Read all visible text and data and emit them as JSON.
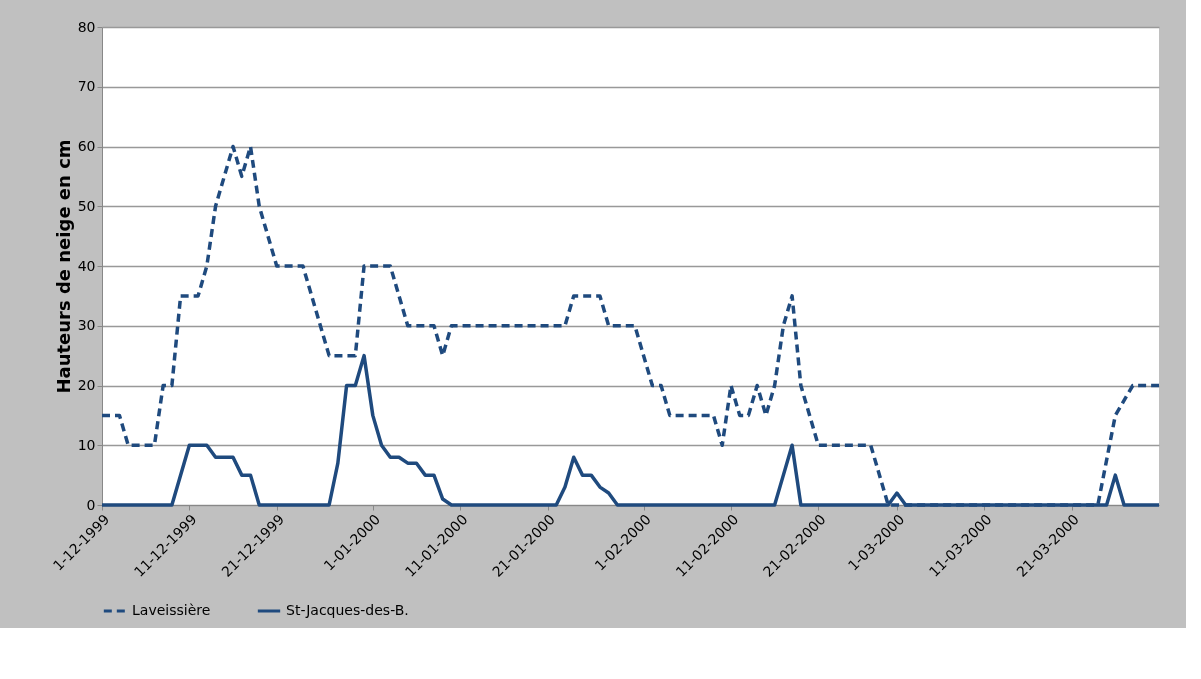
{
  "chart_data": {
    "type": "line",
    "ylabel": "Hauteurs de neige en cm",
    "xlim": [
      "1999-12-01",
      "2000-03-31"
    ],
    "xticks": [
      {
        "value": "1999-12-01",
        "label": "1-12-1999"
      },
      {
        "value": "1999-12-11",
        "label": "11-12-1999"
      },
      {
        "value": "1999-12-21",
        "label": "21-12-1999"
      },
      {
        "value": "2000-01-01",
        "label": "1-01-2000"
      },
      {
        "value": "2000-01-11",
        "label": "11-01-2000"
      },
      {
        "value": "2000-01-21",
        "label": "21-01-2000"
      },
      {
        "value": "2000-02-01",
        "label": "1-02-2000"
      },
      {
        "value": "2000-02-11",
        "label": "11-02-2000"
      },
      {
        "value": "2000-02-21",
        "label": "21-02-2000"
      },
      {
        "value": "2000-03-01",
        "label": "1-03-2000"
      },
      {
        "value": "2000-03-11",
        "label": "11-03-2000"
      },
      {
        "value": "2000-03-21",
        "label": "21-03-2000"
      }
    ],
    "ylim": [
      0,
      80
    ],
    "yticks": [
      0,
      10,
      20,
      30,
      40,
      50,
      60,
      70,
      80
    ],
    "grid": "y",
    "legend": "bottom",
    "marker": "none",
    "series": [
      {
        "name": "Laveissière",
        "color": "#1f4a7e",
        "line_style": "dashed",
        "x": [
          "1999-12-01",
          "1999-12-03",
          "1999-12-04",
          "1999-12-07",
          "1999-12-08",
          "1999-12-09",
          "1999-12-10",
          "1999-12-12",
          "1999-12-13",
          "1999-12-14",
          "1999-12-15",
          "1999-12-16",
          "1999-12-17",
          "1999-12-18",
          "1999-12-19",
          "1999-12-21",
          "1999-12-24",
          "1999-12-26",
          "1999-12-27",
          "1999-12-30",
          "1999-12-31",
          "2000-01-03",
          "2000-01-05",
          "2000-01-08",
          "2000-01-09",
          "2000-01-10",
          "2000-01-23",
          "2000-01-24",
          "2000-01-27",
          "2000-01-28",
          "2000-01-31",
          "2000-02-02",
          "2000-02-03",
          "2000-02-04",
          "2000-02-09",
          "2000-02-10",
          "2000-02-11",
          "2000-02-12",
          "2000-02-13",
          "2000-02-14",
          "2000-02-15",
          "2000-02-16",
          "2000-02-17",
          "2000-02-18",
          "2000-02-19",
          "2000-02-21",
          "2000-02-27",
          "2000-02-29",
          "2000-03-24",
          "2000-03-26",
          "2000-03-28",
          "2000-03-31"
        ],
        "values": [
          15,
          15,
          10,
          10,
          20,
          20,
          35,
          35,
          40,
          50,
          55,
          60,
          55,
          60,
          50,
          40,
          40,
          30,
          25,
          25,
          40,
          40,
          30,
          30,
          25,
          30,
          30,
          35,
          35,
          30,
          30,
          20,
          20,
          15,
          15,
          10,
          20,
          15,
          15,
          20,
          15,
          20,
          30,
          35,
          20,
          10,
          10,
          0,
          0,
          15,
          20,
          20
        ]
      },
      {
        "name": "St-Jacques-des-B.",
        "color": "#1f4a7e",
        "line_style": "solid",
        "x": [
          "1999-12-01",
          "1999-12-09",
          "1999-12-11",
          "1999-12-13",
          "1999-12-14",
          "1999-12-16",
          "1999-12-17",
          "1999-12-18",
          "1999-12-19",
          "1999-12-27",
          "1999-12-28",
          "1999-12-29",
          "1999-12-30",
          "1999-12-31",
          "2000-01-01",
          "2000-01-02",
          "2000-01-03",
          "2000-01-04",
          "2000-01-05",
          "2000-01-06",
          "2000-01-07",
          "2000-01-08",
          "2000-01-09",
          "2000-01-10",
          "2000-01-22",
          "2000-01-23",
          "2000-01-24",
          "2000-01-25",
          "2000-01-26",
          "2000-01-27",
          "2000-01-28",
          "2000-01-29",
          "2000-02-16",
          "2000-02-17",
          "2000-02-18",
          "2000-02-19",
          "2000-02-29",
          "2000-03-01",
          "2000-03-02",
          "2000-03-25",
          "2000-03-26",
          "2000-03-27",
          "2000-03-31"
        ],
        "values": [
          0,
          0,
          10,
          10,
          8,
          8,
          5,
          5,
          0,
          0,
          7,
          20,
          20,
          25,
          15,
          10,
          8,
          8,
          7,
          7,
          5,
          5,
          1,
          0,
          0,
          3,
          8,
          5,
          5,
          3,
          2,
          0,
          0,
          5,
          10,
          0,
          0,
          2,
          0,
          0,
          5,
          0,
          0
        ]
      }
    ]
  }
}
